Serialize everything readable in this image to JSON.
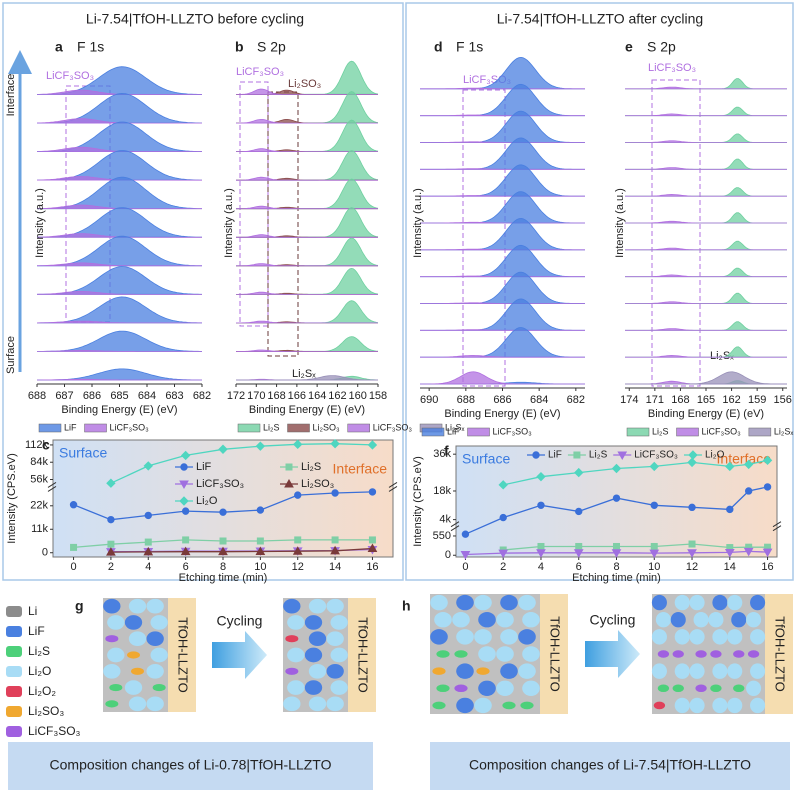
{
  "figure": {
    "headers": [
      "Li-7.54|TfOH-LLZTO  before cycling",
      "Li-7.54|TfOH-LLZTO  after cycling"
    ]
  },
  "chart_data": [
    {
      "type": "spectra",
      "panel": "a",
      "title": "F 1s",
      "xlabel": "Binding Energy (E) (eV)",
      "ylabel": "Intensity (a.u.)",
      "side_labels": [
        "Interface",
        "Surface"
      ],
      "annotations": [
        "LiCF₃SO₃"
      ],
      "xlim": [
        688.0,
        682.0
      ],
      "xticks": [
        688,
        687,
        686,
        685,
        684,
        683,
        682
      ],
      "series": [
        {
          "name": "LiF",
          "color": "#4a7fe0",
          "center": 684.9,
          "width": 0.85,
          "values": [
            0.75,
            0.8,
            0.8,
            0.8,
            0.85,
            0.8,
            0.8,
            0.75,
            0.7,
            0.55,
            0.3
          ]
        },
        {
          "name": "LiCF₃SO₃",
          "color": "#b070e0",
          "center": 686.4,
          "width": 0.6,
          "values": [
            0.12,
            0.12,
            0.12,
            0.1,
            0.1,
            0.1,
            0.08,
            0.08,
            0.05,
            0.03,
            0.02
          ]
        }
      ]
    },
    {
      "type": "spectra",
      "panel": "b",
      "title": "S 2p",
      "xlabel": "Binding Energy (E) (eV)",
      "ylabel": "Intensity (a.u.)",
      "annotations": [
        "LiCF₃SO₃",
        "Li₂SO₃",
        "Li₂Sₓ"
      ],
      "xlim": [
        172.0,
        158.0
      ],
      "xticks": [
        172,
        170,
        168,
        166,
        164,
        162,
        160,
        158
      ],
      "series": [
        {
          "name": "Li₂S",
          "color": "#6fd0a0",
          "center": 160.6,
          "width": 0.9,
          "values": [
            0.9,
            0.85,
            0.85,
            0.8,
            0.8,
            0.8,
            0.75,
            0.7,
            0.6,
            0.4,
            0.1
          ]
        },
        {
          "name": "Li₂SO₃",
          "color": "#8a4a4a",
          "center": 167.0,
          "width": 0.7,
          "values": [
            0.12,
            0.1,
            0.05,
            0.05,
            0.04,
            0.04,
            0.03,
            0.03,
            0.03,
            0.03,
            0
          ]
        },
        {
          "name": "LiCF₃SO₃",
          "color": "#b070e0",
          "center": 169.5,
          "width": 0.7,
          "values": [
            0.15,
            0.1,
            0.08,
            0.08,
            0.07,
            0.07,
            0.06,
            0.06,
            0.05,
            0.04,
            0.02
          ]
        },
        {
          "name": "Li₂Sₓ",
          "color": "#9890b8",
          "center": 162.5,
          "width": 1.2,
          "values": [
            0,
            0,
            0,
            0,
            0,
            0,
            0,
            0,
            0,
            0,
            0.12
          ]
        }
      ]
    },
    {
      "type": "spectra",
      "panel": "d",
      "title": "F 1s",
      "xlabel": "Binding Energy (E) (eV)",
      "ylabel": "Intensity (a.u.)",
      "annotations": [
        "LiCF₃SO₃"
      ],
      "xlim": [
        690.5,
        681.5
      ],
      "xticks": [
        690,
        688,
        686,
        684,
        682
      ],
      "series": [
        {
          "name": "LiF",
          "color": "#4a7fe0",
          "center": 685.0,
          "width": 0.8,
          "values": [
            0.9,
            0.9,
            0.9,
            0.9,
            0.9,
            0.9,
            0.9,
            0.9,
            0.9,
            0.9,
            0.85,
            0.05
          ]
        },
        {
          "name": "LiCF₃SO₃",
          "color": "#b070e0",
          "center": 687.6,
          "width": 0.7,
          "values": [
            0.02,
            0.02,
            0.02,
            0.02,
            0.02,
            0.02,
            0.02,
            0.02,
            0.02,
            0.02,
            0.05,
            0.35
          ]
        }
      ]
    },
    {
      "type": "spectra",
      "panel": "e",
      "title": "S 2p",
      "xlabel": "Binding Energy (E) (eV)",
      "ylabel": "Intensity (a.u.)",
      "annotations": [
        "LiCF₃SO₃",
        "Li₂Sₓ"
      ],
      "xlim": [
        174.5,
        155.5
      ],
      "xticks": [
        174,
        171,
        168,
        165,
        162,
        159,
        156
      ],
      "series": [
        {
          "name": "Li₂S",
          "color": "#6fd0a0",
          "center": 161.3,
          "width": 0.6,
          "values": [
            0.3,
            0.25,
            0.25,
            0.3,
            0.25,
            0.3,
            0.25,
            0.25,
            0.3,
            0.25,
            0.3,
            0.1
          ]
        },
        {
          "name": "LiCF₃SO₃",
          "color": "#b070e0",
          "center": 169.0,
          "width": 1.0,
          "values": [
            0.05,
            0.05,
            0.05,
            0.05,
            0.05,
            0.05,
            0.05,
            0.05,
            0.05,
            0.05,
            0.05,
            0.08
          ]
        },
        {
          "name": "Li₂Sₓ",
          "color": "#9890b8",
          "center": 162.0,
          "width": 1.5,
          "values": [
            0,
            0,
            0,
            0,
            0,
            0,
            0,
            0,
            0,
            0,
            0,
            0.35
          ]
        }
      ]
    },
    {
      "type": "line",
      "panel": "c",
      "xlabel": "Etching time (min)",
      "ylabel": "Intensity (CPS.eV)",
      "region_labels": [
        "Surface",
        "Interface"
      ],
      "x": [
        0,
        2,
        4,
        6,
        8,
        10,
        12,
        14,
        16
      ],
      "xlim": [
        -1.1,
        17.1
      ],
      "xticks": [
        0,
        2,
        4,
        6,
        8,
        10,
        12,
        14,
        16
      ],
      "ylim": [
        -2000,
        120000
      ],
      "y_break": [
        32000,
        48000
      ],
      "yticks": [
        0,
        {
          "value": 11000,
          "label": "11k"
        },
        {
          "value": 22000,
          "label": "22k"
        },
        {
          "value": 56000,
          "label": "56k"
        },
        {
          "value": 84000,
          "label": "84k"
        },
        {
          "value": 112000,
          "label": "112k"
        }
      ],
      "series": [
        {
          "name": "LiF",
          "color": "#3a6fd8",
          "marker": "circle",
          "values": [
            22500,
            15500,
            17500,
            19500,
            19000,
            20000,
            27000,
            28000,
            28500
          ]
        },
        {
          "name": "Li₂S",
          "color": "#7fcfa6",
          "marker": "square",
          "values": [
            2500,
            4000,
            5000,
            6000,
            5500,
            5500,
            6000,
            6000,
            6000
          ]
        },
        {
          "name": "LiCF₃SO₃",
          "color": "#a070e0",
          "marker": "triangle-down",
          "values": [
            null,
            500,
            600,
            700,
            700,
            800,
            900,
            1000,
            1500
          ]
        },
        {
          "name": "Li₂SO₃",
          "color": "#7a3a3a",
          "marker": "triangle-up",
          "values": [
            null,
            300,
            400,
            500,
            500,
            600,
            700,
            900,
            2000
          ]
        },
        {
          "name": "Li₂O",
          "color": "#4fd6c0",
          "marker": "diamond",
          "values": [
            null,
            50000,
            78000,
            95000,
            105000,
            110000,
            113000,
            114000,
            112000
          ]
        }
      ]
    },
    {
      "type": "line",
      "panel": "f",
      "xlabel": "Etching time (min)",
      "ylabel": "Intensity (CPS.eV)",
      "region_labels": [
        "Surface",
        "Interface"
      ],
      "x": [
        0,
        2,
        4,
        6,
        8,
        10,
        12,
        14,
        15,
        16
      ],
      "xlim": [
        -0.5,
        16.5
      ],
      "xticks": [
        0,
        2,
        4,
        6,
        8,
        10,
        12,
        14,
        16
      ],
      "ylim": [
        -50,
        40000
      ],
      "y_break": [
        900,
        2000
      ],
      "yticks": [
        0,
        550,
        {
          "value": 4000,
          "label": "4k"
        },
        {
          "value": 18000,
          "label": "18k"
        },
        {
          "value": 36000,
          "label": "36k"
        }
      ],
      "series": [
        {
          "name": "LiF",
          "color": "#3a6fd8",
          "marker": "circle",
          "values": [
            600,
            5000,
            11000,
            8000,
            14500,
            11000,
            10000,
            9000,
            18000,
            20000
          ]
        },
        {
          "name": "Li₂S",
          "color": "#7fcfa6",
          "marker": "square",
          "values": [
            null,
            150,
            250,
            250,
            250,
            250,
            320,
            220,
            230,
            230
          ]
        },
        {
          "name": "LiCF₃SO₃",
          "color": "#a070e0",
          "marker": "triangle-down",
          "values": [
            20,
            60,
            70,
            70,
            70,
            60,
            70,
            80,
            110,
            90
          ]
        },
        {
          "name": "Li₂O",
          "color": "#4fd6c0",
          "marker": "diamond",
          "values": [
            null,
            21000,
            25000,
            27000,
            29000,
            30000,
            32000,
            30000,
            31000,
            33000
          ]
        }
      ]
    }
  ],
  "schematic": {
    "legend": [
      {
        "name": "Li",
        "color": "#8c8c8c"
      },
      {
        "name": "LiF",
        "color": "#4a80e0"
      },
      {
        "name": "Li₂S",
        "color": "#4dd07a"
      },
      {
        "name": "Li₂O",
        "color": "#a8dcf5"
      },
      {
        "name": "Li₂O₂",
        "color": "#e0405a"
      },
      {
        "name": "Li₂SO₃",
        "color": "#f0a830"
      },
      {
        "name": "LiCF₃SO₃",
        "color": "#a060e0"
      }
    ],
    "panels": [
      {
        "label": "g",
        "electrolyte": "TfOH-LLZTO",
        "arrow_text": "Cycling",
        "caption": "Composition changes of Li-0.78|TfOH-LLZTO"
      },
      {
        "label": "h",
        "electrolyte": "TfOH-LLZTO",
        "arrow_text": "Cycling",
        "caption": "Composition changes of Li-7.54|TfOH-LLZTO"
      }
    ]
  }
}
